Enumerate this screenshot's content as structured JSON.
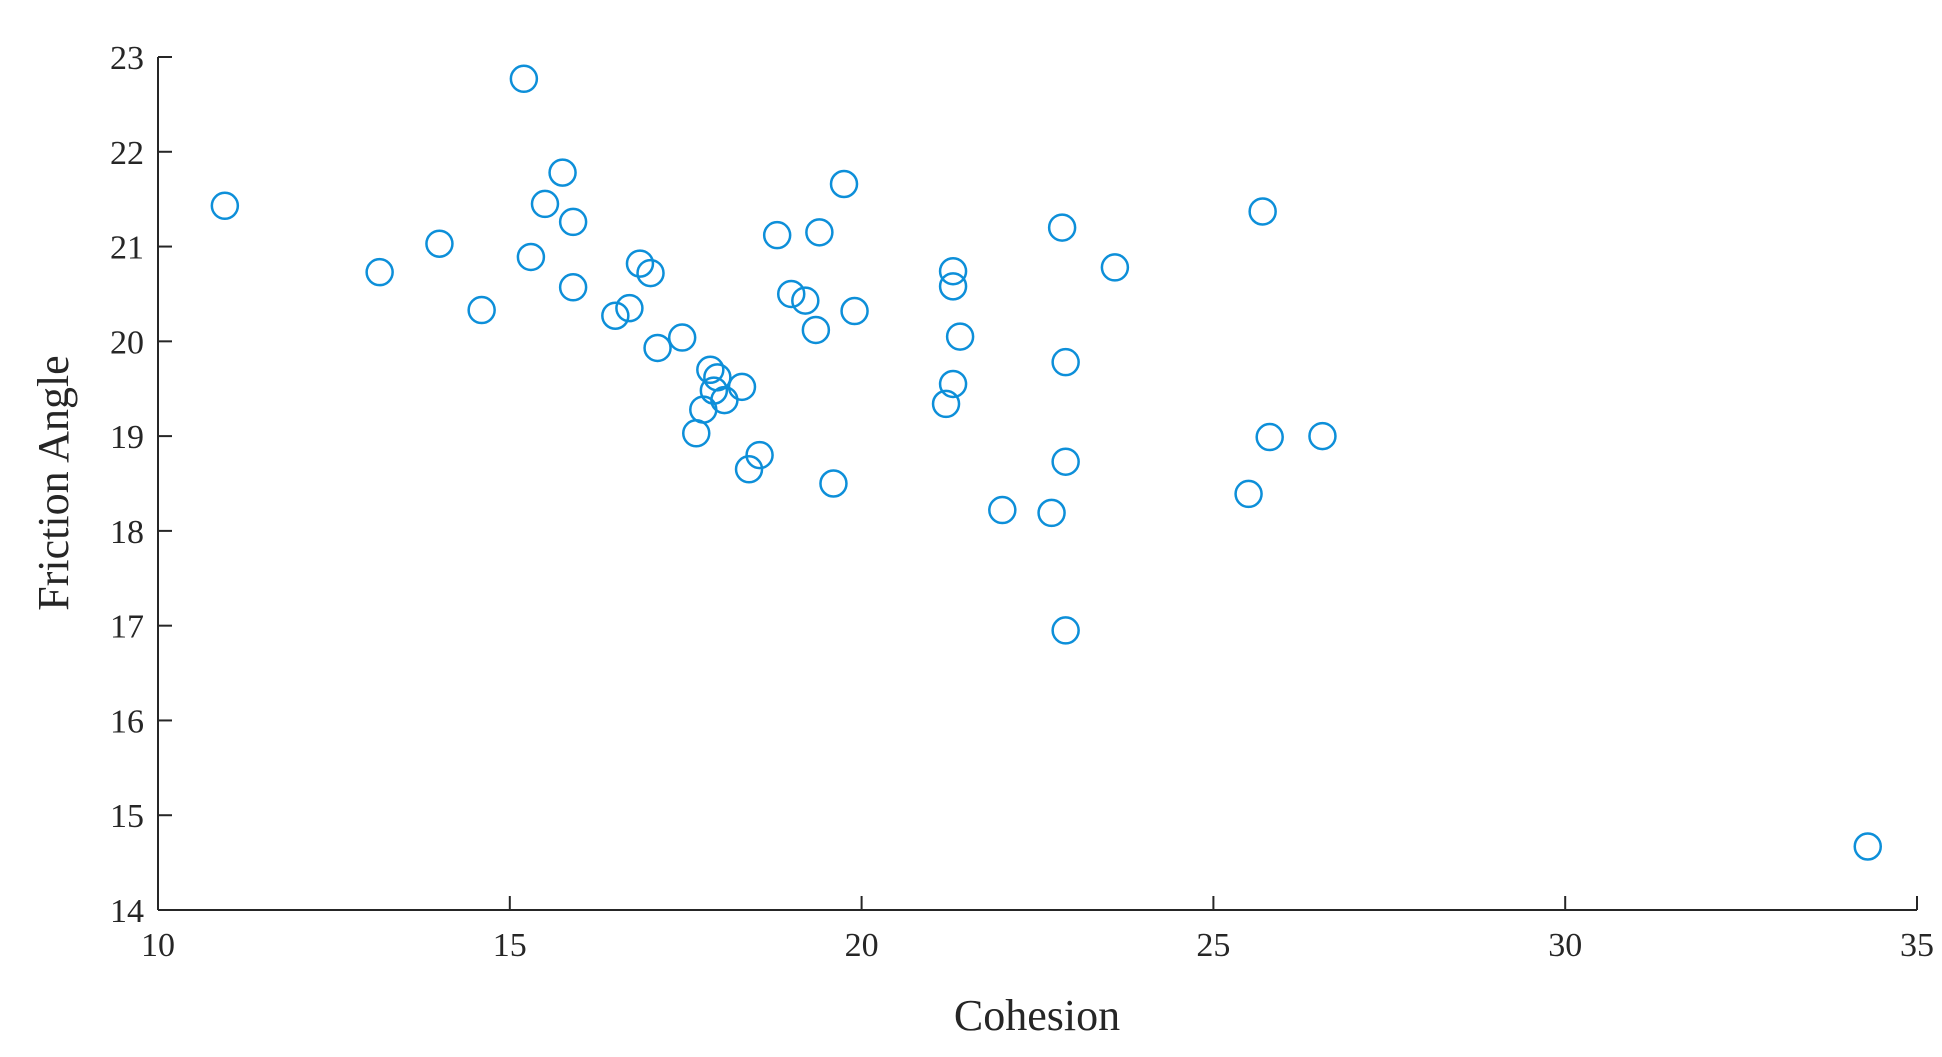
{
  "chart_data": {
    "type": "scatter",
    "title": "",
    "xlabel": "Cohesion",
    "ylabel": "Friction Angle",
    "xlim": [
      10,
      35
    ],
    "ylim": [
      14,
      23
    ],
    "xticks": [
      "10",
      "15",
      "20",
      "25",
      "30",
      "35"
    ],
    "yticks": [
      "14",
      "15",
      "16",
      "17",
      "18",
      "19",
      "20",
      "21",
      "22",
      "23"
    ],
    "grid": false,
    "marker": "open-circle",
    "color": "#0d8fd9",
    "series": [
      {
        "points": [
          [
            10.95,
            21.43
          ],
          [
            13.15,
            20.73
          ],
          [
            14.0,
            21.03
          ],
          [
            14.6,
            20.33
          ],
          [
            15.2,
            22.77
          ],
          [
            15.3,
            20.89
          ],
          [
            15.5,
            21.45
          ],
          [
            15.75,
            21.78
          ],
          [
            15.9,
            21.26
          ],
          [
            15.9,
            20.57
          ],
          [
            16.5,
            20.27
          ],
          [
            16.7,
            20.35
          ],
          [
            16.85,
            20.82
          ],
          [
            17.0,
            20.72
          ],
          [
            17.1,
            19.93
          ],
          [
            17.45,
            20.04
          ],
          [
            17.65,
            19.03
          ],
          [
            17.75,
            19.28
          ],
          [
            17.85,
            19.7
          ],
          [
            17.9,
            19.48
          ],
          [
            17.95,
            19.62
          ],
          [
            18.05,
            19.38
          ],
          [
            18.3,
            19.52
          ],
          [
            18.4,
            18.65
          ],
          [
            18.55,
            18.8
          ],
          [
            18.8,
            21.12
          ],
          [
            19.0,
            20.5
          ],
          [
            19.2,
            20.43
          ],
          [
            19.35,
            20.12
          ],
          [
            19.4,
            21.15
          ],
          [
            19.6,
            18.5
          ],
          [
            19.75,
            21.66
          ],
          [
            19.9,
            20.32
          ],
          [
            21.2,
            19.34
          ],
          [
            21.3,
            19.55
          ],
          [
            21.3,
            20.58
          ],
          [
            21.3,
            20.74
          ],
          [
            21.4,
            20.05
          ],
          [
            22.0,
            18.22
          ],
          [
            22.7,
            18.19
          ],
          [
            22.85,
            21.2
          ],
          [
            22.9,
            18.73
          ],
          [
            22.9,
            19.78
          ],
          [
            22.9,
            16.95
          ],
          [
            23.6,
            20.78
          ],
          [
            25.5,
            18.39
          ],
          [
            25.7,
            21.37
          ],
          [
            25.8,
            18.99
          ],
          [
            26.55,
            19.0
          ],
          [
            34.3,
            14.67
          ]
        ]
      }
    ]
  }
}
